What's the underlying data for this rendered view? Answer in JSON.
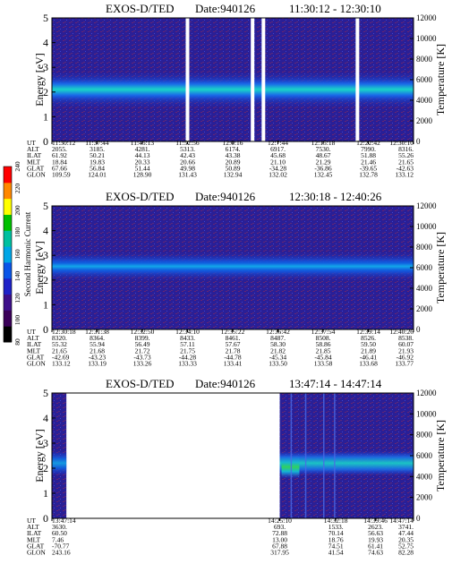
{
  "chart_data": [
    {
      "type": "heatmap",
      "title": "EXOS-D/TED",
      "date_label": "Date:940126",
      "time_range": "11:30:12 - 12:30:10",
      "ylabel": "Energy [eV]",
      "y2label": "Temperature [K]",
      "ylim": [
        0,
        5
      ],
      "y2lim": [
        0,
        12000
      ],
      "y_ticks": [
        "0",
        "1",
        "2",
        "3",
        "4",
        "5"
      ],
      "y2_ticks": [
        "0",
        "2000",
        "4000",
        "6000",
        "8000",
        "10000",
        "12000"
      ],
      "row_labels": [
        "UT",
        "ALT",
        "ILAT",
        "MLT",
        "GLAT",
        "GLON"
      ],
      "columns": [
        [
          "11:30:12",
          "2055.",
          "61.92",
          "18.84",
          "67.66",
          "109.59"
        ],
        [
          "11:37:44",
          "3185.",
          "50.21",
          "19.83",
          "56.84",
          "124.01"
        ],
        [
          "11:45:13",
          "4281.",
          "44.13",
          "20.33",
          "51.44",
          "128.90"
        ],
        [
          "11:52:56",
          "5313.",
          "42.43",
          "20.66",
          "49.98",
          "131.43"
        ],
        [
          "12:0:16",
          "6174.",
          "43.38",
          "20.89",
          "50.89",
          "132.94"
        ],
        [
          "12:7:44",
          "6917.",
          "45.68",
          "21.10",
          "-34.28",
          "132.02"
        ],
        [
          "12:15:18",
          "7530.",
          "48.67",
          "21.29",
          "-36.86",
          "132.45"
        ],
        [
          "12:22:42",
          "7990.",
          "51.88",
          "21.46",
          "-39.65",
          "132.78"
        ],
        [
          "12:30:10",
          "8316.",
          "55.26",
          "21.65",
          "-42.63",
          "133.12"
        ]
      ],
      "band": {
        "center_eV": 2.1,
        "width_eV": 0.45
      },
      "gaps_x": [
        0.37,
        0.55,
        0.58,
        0.84
      ]
    },
    {
      "type": "heatmap",
      "title": "EXOS-D/TED",
      "date_label": "Date:940126",
      "time_range": "12:30:18 - 12:40:26",
      "ylabel": "Energy [eV]",
      "y2label": "Temperature [K]",
      "ylim": [
        0,
        5
      ],
      "y2lim": [
        0,
        12000
      ],
      "y_ticks": [
        "0",
        "1",
        "2",
        "3",
        "4",
        "5"
      ],
      "y2_ticks": [
        "0",
        "2000",
        "4000",
        "6000",
        "8000",
        "10000",
        "12000"
      ],
      "row_labels": [
        "UT",
        "ALT",
        "ILAT",
        "MLT",
        "GLAT",
        "GLON"
      ],
      "columns": [
        [
          "12:30:18",
          "8320.",
          "55.32",
          "21.65",
          "-42.69",
          "133.12"
        ],
        [
          "12:31:38",
          "8364.",
          "55.94",
          "21.68",
          "-43.23",
          "133.19"
        ],
        [
          "12:32:50",
          "8399.",
          "56.49",
          "21.72",
          "-43.73",
          "133.26"
        ],
        [
          "12:34:10",
          "8433.",
          "57.11",
          "21.75",
          "-44.28",
          "133.33"
        ],
        [
          "12:35:22",
          "8461.",
          "57.67",
          "21.78",
          "-44.78",
          "133.41"
        ],
        [
          "12:36:42",
          "8487.",
          "58.30",
          "21.82",
          "-45.34",
          "133.50"
        ],
        [
          "12:37:54",
          "8508.",
          "58.86",
          "21.85",
          "-45.84",
          "133.58"
        ],
        [
          "12:39:14",
          "8526.",
          "59.50",
          "21.89",
          "-46.41",
          "133.68"
        ],
        [
          "12:40:26",
          "8538.",
          "60.07",
          "21.93",
          "-46.92",
          "133.77"
        ]
      ],
      "band": {
        "center_eV": 2.55,
        "width_eV": 0.35
      }
    },
    {
      "type": "heatmap",
      "title": "EXOS-D/TED",
      "date_label": "Date:940126",
      "time_range": "13:47:14 - 14:47:14",
      "ylabel": "Energy [eV]",
      "y2label": "Temperature [K]",
      "ylim": [
        0,
        5
      ],
      "y2lim": [
        0,
        12000
      ],
      "y_ticks": [
        "0",
        "1",
        "2",
        "3",
        "4",
        "5"
      ],
      "y2_ticks": [
        "0",
        "2000",
        "4000",
        "6000",
        "8000",
        "10000",
        "12000"
      ],
      "row_labels": [
        "UT",
        "ALT",
        "ILAT",
        "MLT",
        "GLAT",
        "GLON"
      ],
      "columns": [
        [
          "13:47:14",
          "3630.",
          "60.50",
          "7.46",
          "-70.77",
          "243.16"
        ],
        [
          "14:25:10",
          "693.",
          "72.88",
          "13.00",
          "67.88",
          "317.95"
        ],
        [
          "14:32:18",
          "1533.",
          "70.14",
          "18.76",
          "74.51",
          "41.54"
        ],
        [
          "14:39:46",
          "2623.",
          "56.63",
          "19.93",
          "61.41",
          "74.63"
        ],
        [
          "14:47:14",
          "3741.",
          "47.44",
          "20.35",
          "52.75",
          "82.28"
        ]
      ],
      "data_spans_x": [
        [
          0,
          0.04
        ],
        [
          0.63,
          1.0
        ]
      ]
    }
  ],
  "colorbar": {
    "label": "Second Harmonic Current",
    "ticks": [
      "80",
      "100",
      "120",
      "140",
      "160",
      "180",
      "200",
      "220",
      "240"
    ],
    "colors": [
      "#000000",
      "#3a0058",
      "#3d0f8a",
      "#1e22c8",
      "#0a55e8",
      "#00a6e6",
      "#00c0a0",
      "#00c000",
      "#ffff00",
      "#ff8800",
      "#ff0000"
    ]
  }
}
